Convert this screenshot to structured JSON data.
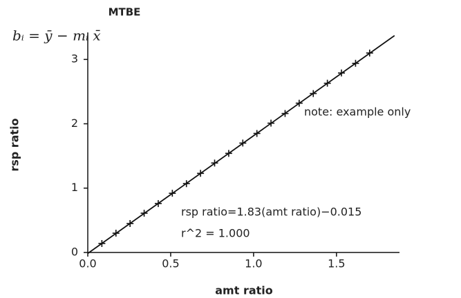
{
  "chart_data": {
    "type": "scatter",
    "title": "MTBE",
    "formula": "bᵢ = ȳ − mᵢ x̄",
    "x_label": "amt ratio",
    "y_label": "rsp ratio",
    "annotations": [
      "note: example only",
      "rsp ratio=1.83(amt ratio)−0.015",
      "r^2 = 1.000"
    ],
    "x": [
      0.085,
      0.17,
      0.255,
      0.34,
      0.425,
      0.51,
      0.595,
      0.68,
      0.765,
      0.85,
      0.935,
      1.02,
      1.105,
      1.19,
      1.275,
      1.36,
      1.445,
      1.53,
      1.615,
      1.7
    ],
    "values": [
      0.14,
      0.3,
      0.45,
      0.61,
      0.76,
      0.92,
      1.07,
      1.23,
      1.39,
      1.54,
      1.7,
      1.85,
      2.01,
      2.16,
      2.32,
      2.47,
      2.63,
      2.79,
      2.94,
      3.1
    ],
    "fit_line": {
      "x": [
        0,
        1.85
      ],
      "y": [
        -0.015,
        3.37
      ]
    },
    "color": "#111111",
    "xlim": [
      0,
      1.88
    ],
    "ylim": [
      0,
      3.42
    ],
    "xticks": [
      {
        "value": 0,
        "label": "0.0"
      },
      0.5,
      {
        "value": 1,
        "label": "1.0"
      },
      1.5
    ],
    "yticks": [
      0,
      1,
      2,
      3
    ]
  }
}
